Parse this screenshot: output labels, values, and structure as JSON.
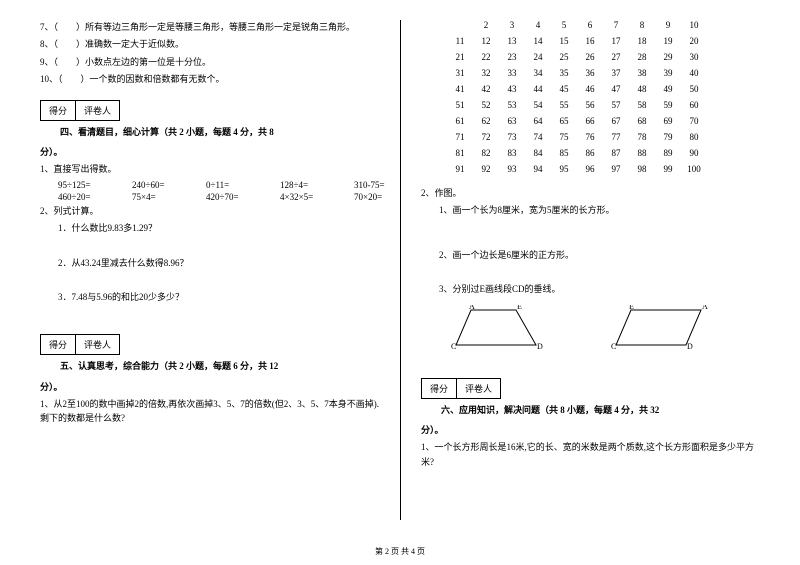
{
  "q7": "7、（　　）所有等边三角形一定是等腰三角形，等腰三角形一定是锐角三角形。",
  "q8": "8、（　　）准确数一定大于近似数。",
  "q9": "9、（　　）小数点左边的第一位是十分位。",
  "q10": "10、（　　）一个数的因数和倍数都有无数个。",
  "score_label_1": "得分",
  "score_label_2": "评卷人",
  "section4_title": "四、看清题目，细心计算（共 2 小题，每题 4 分，共 8",
  "fen": "分）。",
  "s4_1": "1、直接写出得数。",
  "calc": {
    "r1": [
      "95÷125=",
      "240÷60=",
      "0÷11=",
      "128÷4=",
      "310-75="
    ],
    "r2": [
      "460÷20=",
      "75×4=",
      "420÷70=",
      "4×32×5=",
      "70×20="
    ]
  },
  "s4_2": "2、列式计算。",
  "s4_2_1": "1．什么数比9.83多1.29？",
  "s4_2_2": "2．从43.24里减去什么数得8.96？",
  "s4_2_3": "3．7.48与5.96的和比20少多少？",
  "section5_title": "五、认真思考，综合能力（共 2 小题，每题 6 分，共 12",
  "s5_1": "1、从2至100的数中画掉2的倍数,再依次画掉3、5、7的倍数(但2、3、5、7本身不画掉).剩下的数都是什么数?",
  "grid": [
    [
      "",
      "2",
      "3",
      "4",
      "5",
      "6",
      "7",
      "8",
      "9",
      "10"
    ],
    [
      "11",
      "12",
      "13",
      "14",
      "15",
      "16",
      "17",
      "18",
      "19",
      "20"
    ],
    [
      "21",
      "22",
      "23",
      "24",
      "25",
      "26",
      "27",
      "28",
      "29",
      "30"
    ],
    [
      "31",
      "32",
      "33",
      "34",
      "35",
      "36",
      "37",
      "38",
      "39",
      "40"
    ],
    [
      "41",
      "42",
      "43",
      "44",
      "45",
      "46",
      "47",
      "48",
      "49",
      "50"
    ],
    [
      "51",
      "52",
      "53",
      "54",
      "55",
      "56",
      "57",
      "58",
      "59",
      "60"
    ],
    [
      "61",
      "62",
      "63",
      "64",
      "65",
      "66",
      "67",
      "68",
      "69",
      "70"
    ],
    [
      "71",
      "72",
      "73",
      "74",
      "75",
      "76",
      "77",
      "78",
      "79",
      "80"
    ],
    [
      "81",
      "82",
      "83",
      "84",
      "85",
      "86",
      "87",
      "88",
      "89",
      "90"
    ],
    [
      "91",
      "92",
      "93",
      "94",
      "95",
      "96",
      "97",
      "98",
      "99",
      "100"
    ]
  ],
  "s5_2": "2、作图。",
  "s5_2_1": "1、画一个长为8厘米，宽为5厘米的长方形。",
  "s5_2_2": "2、画一个边长是6厘米的正方形。",
  "s5_2_3": "3、分别过E画线段CD的垂线。",
  "shape_labels": {
    "A": "A",
    "E": "E",
    "C": "C",
    "D": "D"
  },
  "section6_title": "六、应用知识，解决问题（共 8 小题，每题 4 分，共 32",
  "s6_1": "1、一个长方形周长是16米,它的长、宽的米数是两个质数,这个长方形面积是多少平方米?",
  "footer": "第 2 页 共 4 页",
  "colors": {
    "text": "#000000",
    "bg": "#ffffff",
    "line": "#000000"
  }
}
